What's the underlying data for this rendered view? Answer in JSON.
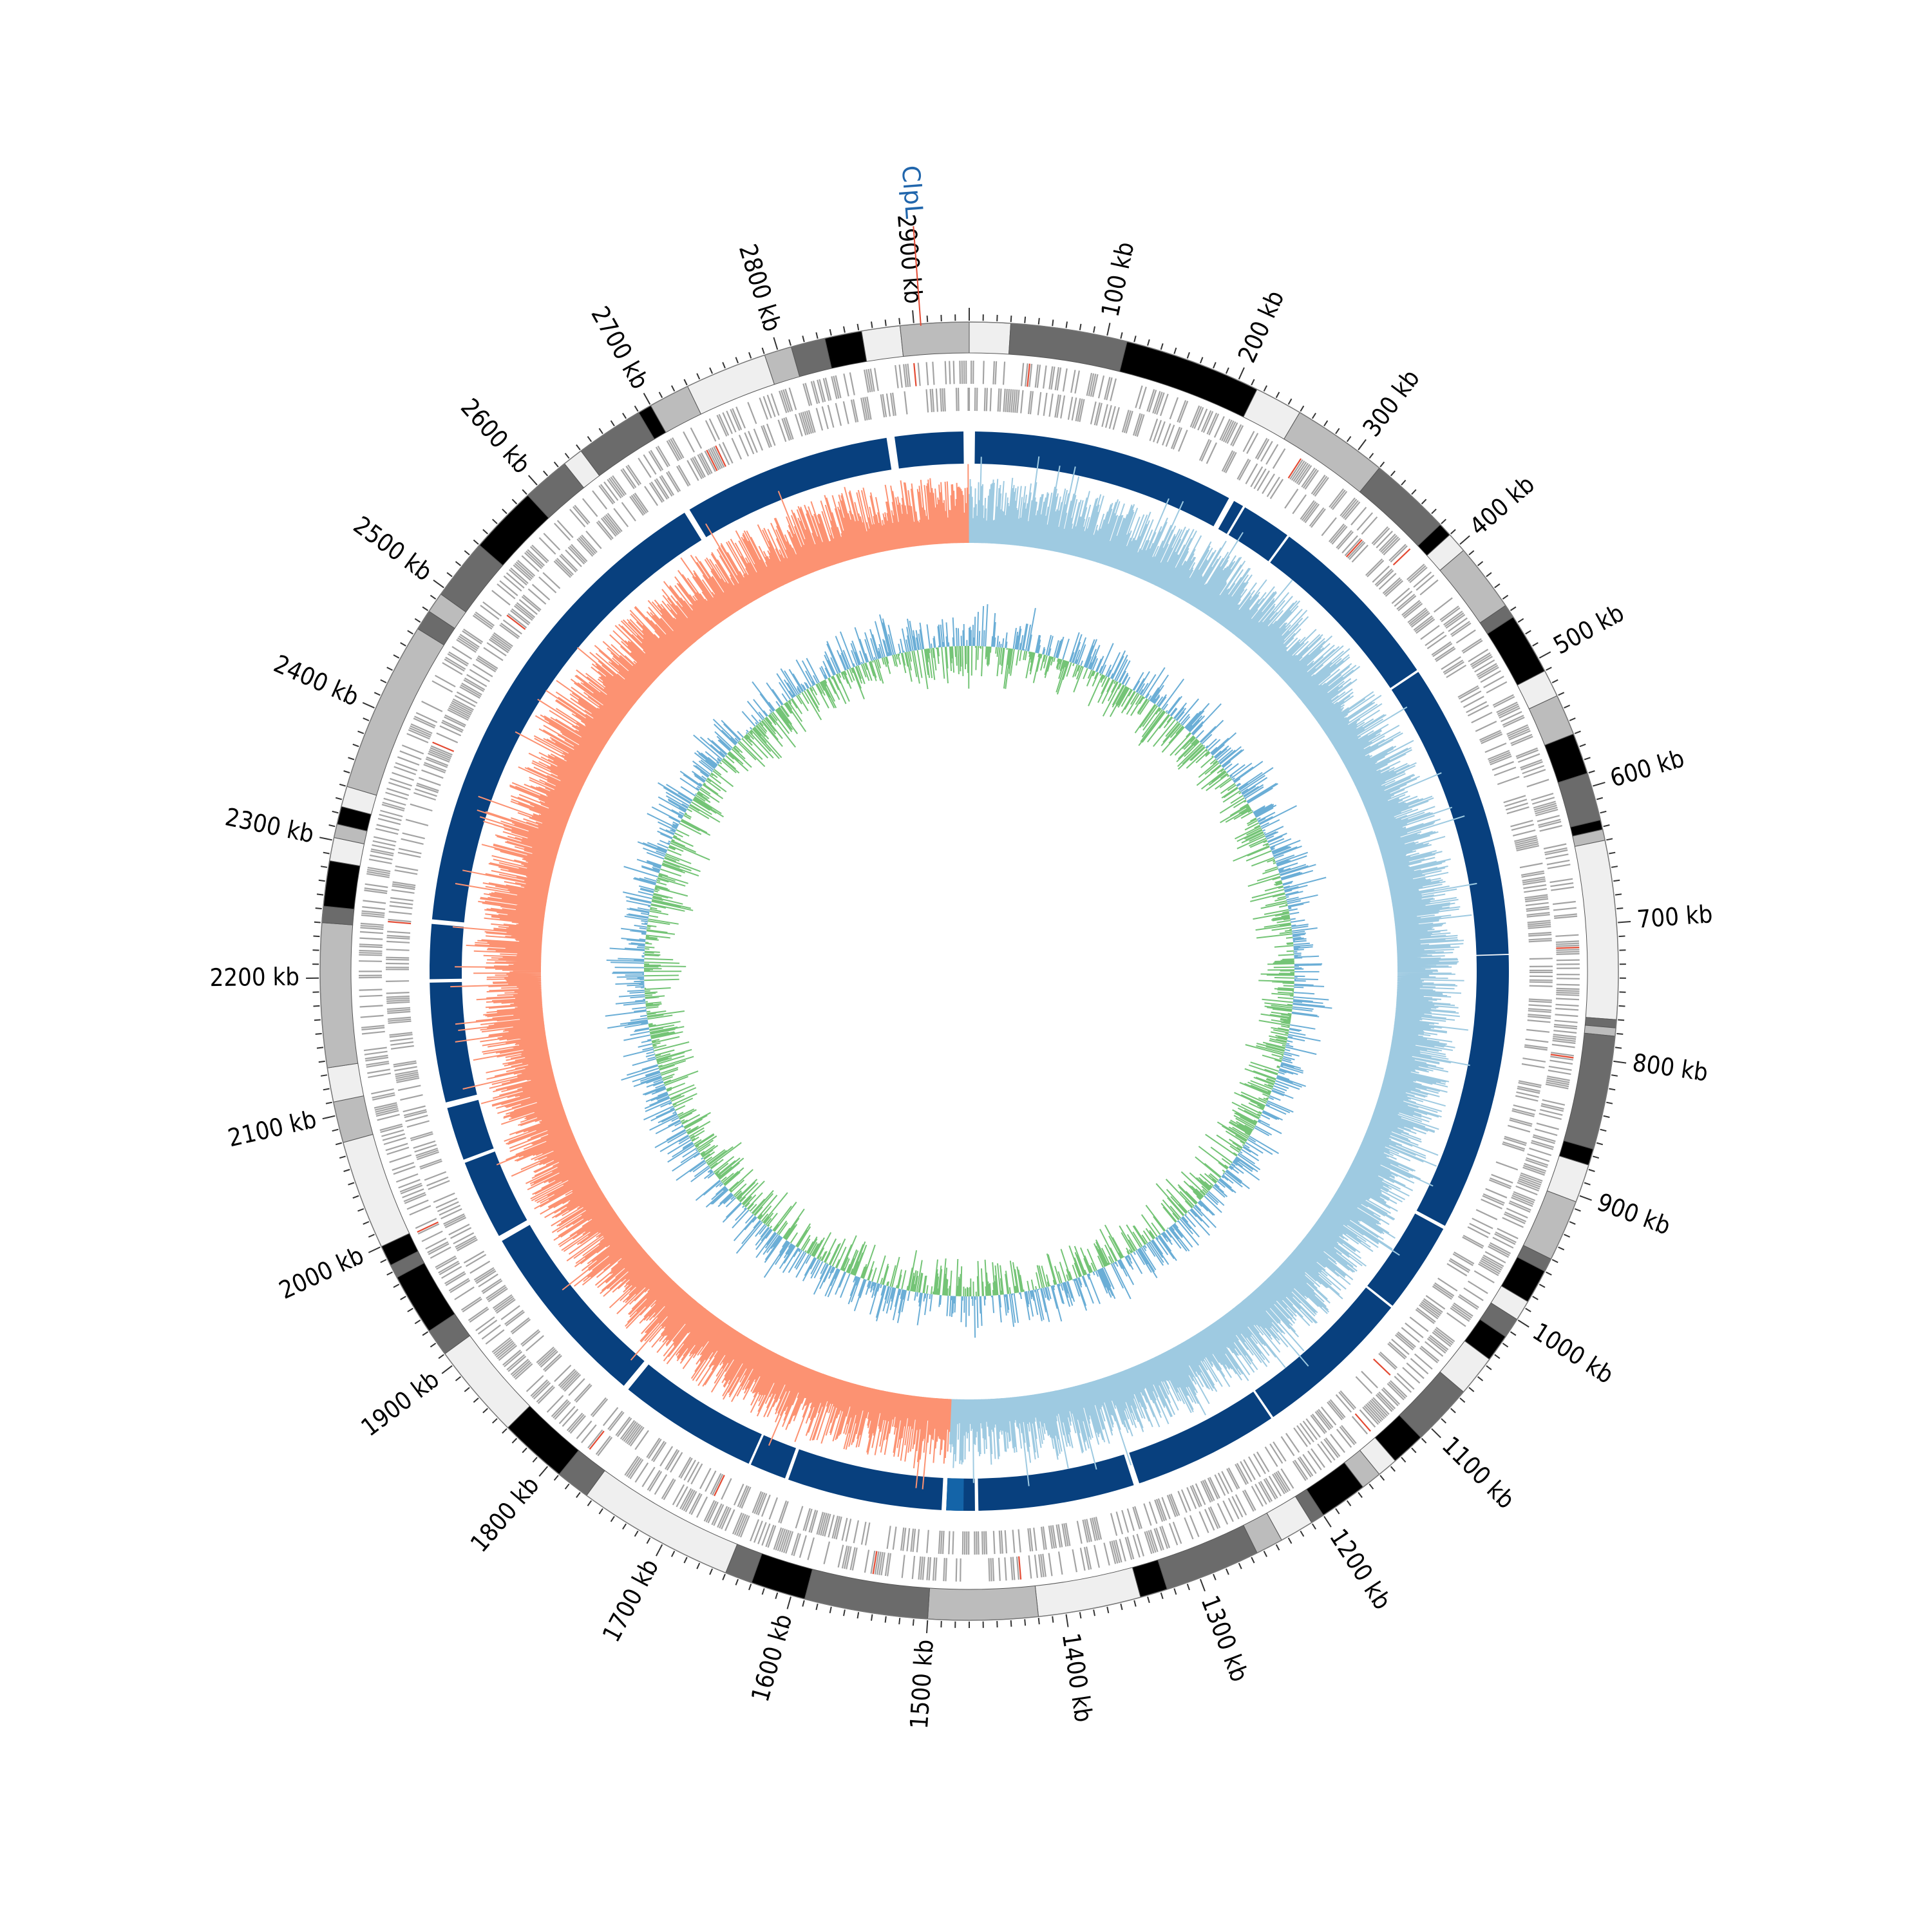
{
  "genome": {
    "length_kb": 2940,
    "tick_labels": [
      "100 kb",
      "200 kb",
      "300 kb",
      "400 kb",
      "500 kb",
      "600 kb",
      "700 kb",
      "800 kb",
      "900 kb",
      "1000 kb",
      "1100 kb",
      "1200 kb",
      "1300 kb",
      "1400 kb",
      "1500 kb",
      "1600 kb",
      "1700 kb",
      "1800 kb",
      "1900 kb",
      "2000 kb",
      "2100 kb",
      "2200 kb",
      "2300 kb",
      "2400 kb",
      "2500 kb",
      "2600 kb",
      "2700 kb",
      "2800 kb",
      "2900 kb"
    ],
    "tick_values_kb": [
      100,
      200,
      300,
      400,
      500,
      600,
      700,
      800,
      900,
      1000,
      1100,
      1200,
      1300,
      1400,
      1500,
      1600,
      1700,
      1800,
      1900,
      2000,
      2100,
      2200,
      2300,
      2400,
      2500,
      2600,
      2700,
      2800,
      2900
    ]
  },
  "highlight_gene": {
    "label": "ClpL",
    "position_kb": 2905,
    "color": "#2166ac",
    "line_color": "#e34a33"
  },
  "tracks": {
    "cytoband": {
      "bands": [
        [
          0,
          30,
          "#efefef"
        ],
        [
          30,
          115,
          "#6b6b6b"
        ],
        [
          115,
          215,
          "#000000"
        ],
        [
          215,
          250,
          "#efefef"
        ],
        [
          250,
          320,
          "#bcbcbc"
        ],
        [
          320,
          380,
          "#6b6b6b"
        ],
        [
          380,
          390,
          "#000000"
        ],
        [
          390,
          405,
          "#efefef"
        ],
        [
          405,
          455,
          "#bcbcbc"
        ],
        [
          455,
          465,
          "#6b6b6b"
        ],
        [
          465,
          510,
          "#000000"
        ],
        [
          510,
          530,
          "#efefef"
        ],
        [
          530,
          560,
          "#bcbcbc"
        ],
        [
          560,
          590,
          "#000000"
        ],
        [
          590,
          625,
          "#6b6b6b"
        ],
        [
          625,
          632,
          "#000000"
        ],
        [
          632,
          640,
          "#bcbcbc"
        ],
        [
          640,
          770,
          "#efefef"
        ],
        [
          770,
          776,
          "#6b6b6b"
        ],
        [
          776,
          782,
          "#bcbcbc"
        ],
        [
          782,
          865,
          "#6b6b6b"
        ],
        [
          865,
          877,
          "#000000"
        ],
        [
          877,
          905,
          "#efefef"
        ],
        [
          905,
          950,
          "#bcbcbc"
        ],
        [
          950,
          960,
          "#6b6b6b"
        ],
        [
          960,
          985,
          "#000000"
        ],
        [
          985,
          1000,
          "#efefef"
        ],
        [
          1000,
          1015,
          "#6b6b6b"
        ],
        [
          1015,
          1035,
          "#000000"
        ],
        [
          1035,
          1065,
          "#efefef"
        ],
        [
          1065,
          1110,
          "#6b6b6b"
        ],
        [
          1110,
          1135,
          "#000000"
        ],
        [
          1135,
          1150,
          "#efefef"
        ],
        [
          1150,
          1165,
          "#bcbcbc"
        ],
        [
          1165,
          1200,
          "#000000"
        ],
        [
          1200,
          1210,
          "#6b6b6b"
        ],
        [
          1210,
          1235,
          "#efefef"
        ],
        [
          1235,
          1255,
          "#bcbcbc"
        ],
        [
          1255,
          1325,
          "#6b6b6b"
        ],
        [
          1325,
          1345,
          "#000000"
        ],
        [
          1345,
          1420,
          "#efefef"
        ],
        [
          1420,
          1500,
          "#bcbcbc"
        ],
        [
          1500,
          1590,
          "#6b6b6b"
        ],
        [
          1590,
          1630,
          "#000000"
        ],
        [
          1630,
          1650,
          "#6b6b6b"
        ],
        [
          1650,
          1765,
          "#efefef"
        ],
        [
          1765,
          1790,
          "#6b6b6b"
        ],
        [
          1790,
          1840,
          "#000000"
        ],
        [
          1840,
          1910,
          "#efefef"
        ],
        [
          1910,
          1930,
          "#6b6b6b"
        ],
        [
          1930,
          1975,
          "#000000"
        ],
        [
          1975,
          1985,
          "#6b6b6b"
        ],
        [
          1985,
          2000,
          "#000000"
        ],
        [
          2000,
          2080,
          "#efefef"
        ],
        [
          2080,
          2110,
          "#bcbcbc"
        ],
        [
          2110,
          2135,
          "#efefef"
        ],
        [
          2135,
          2240,
          "#bcbcbc"
        ],
        [
          2240,
          2252,
          "#6b6b6b"
        ],
        [
          2252,
          2285,
          "#000000"
        ],
        [
          2285,
          2302,
          "#efefef"
        ],
        [
          2302,
          2312,
          "#bcbcbc"
        ],
        [
          2312,
          2325,
          "#000000"
        ],
        [
          2325,
          2340,
          "#efefef"
        ],
        [
          2340,
          2465,
          "#bcbcbc"
        ],
        [
          2465,
          2480,
          "#6b6b6b"
        ],
        [
          2480,
          2495,
          "#bcbcbc"
        ],
        [
          2495,
          2540,
          "#6b6b6b"
        ],
        [
          2540,
          2590,
          "#000000"
        ],
        [
          2590,
          2625,
          "#6b6b6b"
        ],
        [
          2625,
          2640,
          "#efefef"
        ],
        [
          2640,
          2690,
          "#6b6b6b"
        ],
        [
          2690,
          2700,
          "#000000"
        ],
        [
          2700,
          2730,
          "#bcbcbc"
        ],
        [
          2730,
          2790,
          "#efefef"
        ],
        [
          2790,
          2810,
          "#bcbcbc"
        ],
        [
          2810,
          2835,
          "#6b6b6b"
        ],
        [
          2835,
          2862,
          "#000000"
        ],
        [
          2862,
          2890,
          "#efefef"
        ],
        [
          2890,
          2940,
          "#bcbcbc"
        ]
      ]
    },
    "genes": {
      "color": "#a3a3a3",
      "accent_color": "#e34a33"
    },
    "contigs": {
      "color": "#08407e",
      "alt_color": "#1464a8",
      "segments": [
        [
          5,
          235
        ],
        [
          240,
          249
        ],
        [
          251,
          295
        ],
        [
          297,
          458
        ],
        [
          460,
          720
        ],
        [
          721,
          965
        ],
        [
          968,
          1048
        ],
        [
          1050,
          1190
        ],
        [
          1192,
          1320
        ],
        [
          1325,
          1462
        ],
        [
          1465,
          1490
        ],
        [
          1494,
          1630
        ],
        [
          1633,
          1665
        ],
        [
          1667,
          1790
        ],
        [
          1795,
          1960
        ],
        [
          1965,
          2035
        ],
        [
          2038,
          2085
        ],
        [
          2090,
          2195
        ],
        [
          2198,
          2246
        ],
        [
          2250,
          2680
        ],
        [
          2685,
          2868
        ],
        [
          2875,
          2935
        ]
      ],
      "highlight_segment": [
        1475,
        1490
      ]
    },
    "gc_skew": {
      "positive_color": "#9ecae1",
      "negative_color": "#fc9272"
    },
    "gc_content": {
      "high_color": "#6baed6",
      "low_color": "#74c476"
    }
  }
}
